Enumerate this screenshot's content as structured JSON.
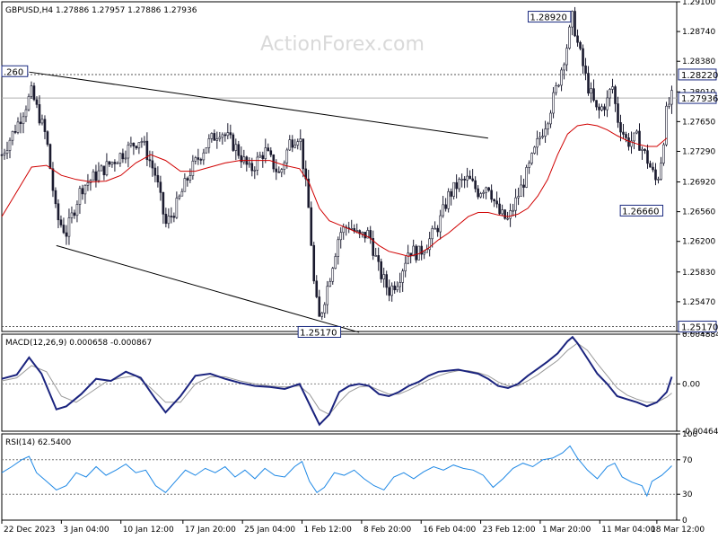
{
  "watermark": "ActionForex.com",
  "chart_data": [
    {
      "type": "line",
      "name": "price",
      "header": "GBPUSD,H4  1.27886 1.27957 1.27886 1.27936",
      "ylim": [
        1.2511,
        1.291
      ],
      "y_ticks": [
        "1.29100",
        "1.28740",
        "1.28380",
        "1.28010",
        "1.27650",
        "1.27290",
        "1.26920",
        "1.26560",
        "1.26200",
        "1.25830",
        "1.25470",
        "1.25110"
      ],
      "y_tick_values": [
        1.291,
        1.2874,
        1.2838,
        1.2801,
        1.2765,
        1.2729,
        1.2692,
        1.2656,
        1.262,
        1.2583,
        1.2547,
        1.2511
      ],
      "x_labels": [
        "22 Dec 2023",
        "3 Jan 04:00",
        "10 Jan 12:00",
        "17 Jan 20:00",
        "25 Jan 04:00",
        "1 Feb 12:00",
        "8 Feb 20:00",
        "16 Feb 04:00",
        "23 Feb 12:00",
        "1 Mar 20:00",
        "11 Mar 04:00",
        "18 Mar 12:00"
      ],
      "x_label_positions": [
        0.0,
        0.12,
        0.24,
        0.365,
        0.485,
        0.605,
        0.725,
        0.845,
        0.965,
        1.085,
        1.205,
        1.32
      ],
      "price_path": [
        [
          0,
          1.2725
        ],
        [
          0.03,
          1.276
        ],
        [
          0.06,
          1.28
        ],
        [
          0.09,
          1.2745
        ],
        [
          0.11,
          1.265
        ],
        [
          0.13,
          1.263
        ],
        [
          0.16,
          1.2685
        ],
        [
          0.19,
          1.27
        ],
        [
          0.22,
          1.2715
        ],
        [
          0.25,
          1.273
        ],
        [
          0.28,
          1.2745
        ],
        [
          0.31,
          1.27
        ],
        [
          0.33,
          1.264
        ],
        [
          0.35,
          1.266
        ],
        [
          0.38,
          1.2705
        ],
        [
          0.41,
          1.2735
        ],
        [
          0.44,
          1.2755
        ],
        [
          0.47,
          1.2735
        ],
        [
          0.5,
          1.2705
        ],
        [
          0.53,
          1.273
        ],
        [
          0.56,
          1.27
        ],
        [
          0.58,
          1.274
        ],
        [
          0.6,
          1.275
        ],
        [
          0.62,
          1.265
        ],
        [
          0.63,
          1.256
        ],
        [
          0.64,
          1.2525
        ],
        [
          0.66,
          1.2575
        ],
        [
          0.68,
          1.263
        ],
        [
          0.7,
          1.264
        ],
        [
          0.72,
          1.2625
        ],
        [
          0.74,
          1.263
        ],
        [
          0.76,
          1.2585
        ],
        [
          0.78,
          1.256
        ],
        [
          0.8,
          1.2575
        ],
        [
          0.82,
          1.261
        ],
        [
          0.84,
          1.2605
        ],
        [
          0.86,
          1.262
        ],
        [
          0.88,
          1.264
        ],
        [
          0.9,
          1.2675
        ],
        [
          0.92,
          1.269
        ],
        [
          0.94,
          1.2695
        ],
        [
          0.96,
          1.268
        ],
        [
          0.98,
          1.269
        ],
        [
          1.0,
          1.2655
        ],
        [
          1.02,
          1.2645
        ],
        [
          1.04,
          1.2675
        ],
        [
          1.06,
          1.2705
        ],
        [
          1.08,
          1.274
        ],
        [
          1.1,
          1.277
        ],
        [
          1.12,
          1.281
        ],
        [
          1.14,
          1.286
        ],
        [
          1.15,
          1.2892
        ],
        [
          1.16,
          1.286
        ],
        [
          1.18,
          1.281
        ],
        [
          1.2,
          1.2775
        ],
        [
          1.22,
          1.279
        ],
        [
          1.23,
          1.281
        ],
        [
          1.24,
          1.277
        ],
        [
          1.26,
          1.274
        ],
        [
          1.28,
          1.2745
        ],
        [
          1.3,
          1.272
        ],
        [
          1.32,
          1.269
        ],
        [
          1.33,
          1.2725
        ],
        [
          1.34,
          1.278
        ],
        [
          1.35,
          1.2794
        ]
      ],
      "ma_path": [
        [
          0,
          1.265
        ],
        [
          0.03,
          1.268
        ],
        [
          0.06,
          1.271
        ],
        [
          0.09,
          1.2712
        ],
        [
          0.12,
          1.27
        ],
        [
          0.15,
          1.2695
        ],
        [
          0.18,
          1.2692
        ],
        [
          0.21,
          1.2693
        ],
        [
          0.24,
          1.27
        ],
        [
          0.27,
          1.2715
        ],
        [
          0.3,
          1.2725
        ],
        [
          0.33,
          1.2718
        ],
        [
          0.36,
          1.2705
        ],
        [
          0.39,
          1.2705
        ],
        [
          0.42,
          1.271
        ],
        [
          0.45,
          1.2715
        ],
        [
          0.48,
          1.2718
        ],
        [
          0.51,
          1.2718
        ],
        [
          0.54,
          1.2718
        ],
        [
          0.57,
          1.2712
        ],
        [
          0.6,
          1.2708
        ],
        [
          0.62,
          1.269
        ],
        [
          0.64,
          1.266
        ],
        [
          0.66,
          1.2645
        ],
        [
          0.68,
          1.264
        ],
        [
          0.7,
          1.2635
        ],
        [
          0.72,
          1.263
        ],
        [
          0.74,
          1.2625
        ],
        [
          0.76,
          1.2615
        ],
        [
          0.78,
          1.2608
        ],
        [
          0.8,
          1.2605
        ],
        [
          0.82,
          1.2602
        ],
        [
          0.84,
          1.2605
        ],
        [
          0.86,
          1.2612
        ],
        [
          0.88,
          1.2622
        ],
        [
          0.9,
          1.263
        ],
        [
          0.92,
          1.264
        ],
        [
          0.94,
          1.265
        ],
        [
          0.96,
          1.2655
        ],
        [
          0.98,
          1.2655
        ],
        [
          1.0,
          1.2652
        ],
        [
          1.02,
          1.265
        ],
        [
          1.04,
          1.2653
        ],
        [
          1.06,
          1.266
        ],
        [
          1.08,
          1.2675
        ],
        [
          1.1,
          1.2695
        ],
        [
          1.12,
          1.2725
        ],
        [
          1.14,
          1.275
        ],
        [
          1.16,
          1.276
        ],
        [
          1.18,
          1.2762
        ],
        [
          1.2,
          1.276
        ],
        [
          1.22,
          1.2755
        ],
        [
          1.24,
          1.2748
        ],
        [
          1.26,
          1.2742
        ],
        [
          1.28,
          1.2738
        ],
        [
          1.3,
          1.2735
        ],
        [
          1.32,
          1.2735
        ],
        [
          1.34,
          1.2745
        ]
      ],
      "trendlines": [
        {
          "name": "upper-channel",
          "from": [
            0.055,
            1.2825
          ],
          "to": [
            0.98,
            1.2745
          ]
        },
        {
          "name": "lower-channel",
          "from": [
            0.11,
            1.2615
          ],
          "to": [
            0.72,
            1.251
          ]
        }
      ],
      "levels": [
        {
          "value": 1.2822,
          "label": "1.28220",
          "style": "dotted"
        },
        {
          "value": 1.2517,
          "label": "1.25170",
          "style": "dotted"
        },
        {
          "value": 1.27936,
          "label": "1.27936",
          "style": "solid"
        }
      ],
      "annotations": [
        {
          "label": "1.28920",
          "x": 1.15,
          "y": 1.2892
        },
        {
          "label": "1.26660",
          "x": 1.3,
          "y": 1.2666
        },
        {
          "label": "1.25170",
          "x": 0.64,
          "y": 1.2517
        },
        {
          "label": ".260",
          "x": 0.0,
          "y": 1.2826
        }
      ]
    },
    {
      "type": "line",
      "name": "macd",
      "header": "MACD(12,26,9) 0.000658 -0.000867",
      "ylim": [
        -0.004645,
        0.004884
      ],
      "y_ticks": [
        "0.004884",
        "0.00",
        "-0.004645"
      ],
      "y_tick_values": [
        0.004884,
        0.0,
        -0.004645
      ],
      "macd_path": [
        [
          0,
          0.0005
        ],
        [
          0.03,
          0.0009
        ],
        [
          0.055,
          0.0026
        ],
        [
          0.08,
          0.001
        ],
        [
          0.11,
          -0.0025
        ],
        [
          0.13,
          -0.0022
        ],
        [
          0.16,
          -0.001
        ],
        [
          0.19,
          0.0005
        ],
        [
          0.22,
          0.0003
        ],
        [
          0.25,
          0.0012
        ],
        [
          0.28,
          0.0006
        ],
        [
          0.31,
          -0.0015
        ],
        [
          0.33,
          -0.0028
        ],
        [
          0.36,
          -0.0012
        ],
        [
          0.39,
          0.0008
        ],
        [
          0.42,
          0.001
        ],
        [
          0.45,
          0.0005
        ],
        [
          0.48,
          0.0001
        ],
        [
          0.51,
          -0.0002
        ],
        [
          0.54,
          -0.0003
        ],
        [
          0.57,
          -0.0005
        ],
        [
          0.6,
          0.0
        ],
        [
          0.62,
          -0.002
        ],
        [
          0.64,
          -0.004
        ],
        [
          0.66,
          -0.003
        ],
        [
          0.68,
          -0.0008
        ],
        [
          0.7,
          -0.0002
        ],
        [
          0.72,
          0.0
        ],
        [
          0.74,
          -0.0002
        ],
        [
          0.76,
          -0.001
        ],
        [
          0.78,
          -0.0012
        ],
        [
          0.8,
          -0.0008
        ],
        [
          0.82,
          -0.0002
        ],
        [
          0.84,
          0.0002
        ],
        [
          0.86,
          0.0008
        ],
        [
          0.88,
          0.0012
        ],
        [
          0.9,
          0.0013
        ],
        [
          0.92,
          0.0014
        ],
        [
          0.94,
          0.0012
        ],
        [
          0.96,
          0.001
        ],
        [
          0.98,
          0.0005
        ],
        [
          1.0,
          -0.0002
        ],
        [
          1.02,
          -0.0004
        ],
        [
          1.04,
          0.0
        ],
        [
          1.06,
          0.0008
        ],
        [
          1.08,
          0.0015
        ],
        [
          1.1,
          0.0022
        ],
        [
          1.12,
          0.003
        ],
        [
          1.14,
          0.0042
        ],
        [
          1.15,
          0.0046
        ],
        [
          1.16,
          0.004
        ],
        [
          1.18,
          0.0025
        ],
        [
          1.2,
          0.001
        ],
        [
          1.22,
          0.0
        ],
        [
          1.24,
          -0.0012
        ],
        [
          1.26,
          -0.0015
        ],
        [
          1.28,
          -0.0018
        ],
        [
          1.3,
          -0.0022
        ],
        [
          1.32,
          -0.0018
        ],
        [
          1.34,
          -0.0008
        ],
        [
          1.35,
          0.0007
        ]
      ],
      "signal_path": [
        [
          0,
          0.0003
        ],
        [
          0.03,
          0.0006
        ],
        [
          0.06,
          0.0018
        ],
        [
          0.09,
          0.0012
        ],
        [
          0.12,
          -0.0012
        ],
        [
          0.15,
          -0.0018
        ],
        [
          0.18,
          -0.0008
        ],
        [
          0.21,
          0.0002
        ],
        [
          0.24,
          0.0006
        ],
        [
          0.27,
          0.0008
        ],
        [
          0.3,
          -0.0004
        ],
        [
          0.33,
          -0.0018
        ],
        [
          0.36,
          -0.0018
        ],
        [
          0.39,
          0.0
        ],
        [
          0.42,
          0.0007
        ],
        [
          0.45,
          0.0007
        ],
        [
          0.48,
          0.0003
        ],
        [
          0.51,
          0.0
        ],
        [
          0.54,
          -0.0002
        ],
        [
          0.57,
          -0.0003
        ],
        [
          0.6,
          -0.0002
        ],
        [
          0.62,
          -0.001
        ],
        [
          0.64,
          -0.0025
        ],
        [
          0.66,
          -0.003
        ],
        [
          0.68,
          -0.0018
        ],
        [
          0.7,
          -0.0008
        ],
        [
          0.72,
          -0.0003
        ],
        [
          0.74,
          -0.0002
        ],
        [
          0.76,
          -0.0006
        ],
        [
          0.78,
          -0.001
        ],
        [
          0.8,
          -0.001
        ],
        [
          0.82,
          -0.0006
        ],
        [
          0.84,
          -0.0001
        ],
        [
          0.86,
          0.0004
        ],
        [
          0.88,
          0.0008
        ],
        [
          0.9,
          0.0011
        ],
        [
          0.92,
          0.0013
        ],
        [
          0.94,
          0.0013
        ],
        [
          0.96,
          0.0011
        ],
        [
          0.98,
          0.0008
        ],
        [
          1.0,
          0.0002
        ],
        [
          1.02,
          -0.0002
        ],
        [
          1.04,
          -0.0002
        ],
        [
          1.06,
          0.0003
        ],
        [
          1.08,
          0.0009
        ],
        [
          1.1,
          0.0016
        ],
        [
          1.12,
          0.0023
        ],
        [
          1.14,
          0.0033
        ],
        [
          1.16,
          0.004
        ],
        [
          1.18,
          0.0033
        ],
        [
          1.2,
          0.002
        ],
        [
          1.22,
          0.0008
        ],
        [
          1.24,
          -0.0004
        ],
        [
          1.26,
          -0.0011
        ],
        [
          1.28,
          -0.0015
        ],
        [
          1.3,
          -0.0018
        ],
        [
          1.32,
          -0.0018
        ],
        [
          1.34,
          -0.0013
        ],
        [
          1.35,
          -0.0009
        ]
      ]
    },
    {
      "type": "line",
      "name": "rsi",
      "header": "RSI(14) 62.5400",
      "ylim": [
        0,
        100
      ],
      "y_ticks": [
        "100",
        "70",
        "30",
        "0"
      ],
      "y_tick_values": [
        100,
        70,
        30,
        0
      ],
      "levels": [
        70,
        30
      ],
      "rsi_path": [
        [
          0,
          55
        ],
        [
          0.02,
          62
        ],
        [
          0.04,
          70
        ],
        [
          0.055,
          74
        ],
        [
          0.07,
          55
        ],
        [
          0.09,
          45
        ],
        [
          0.11,
          35
        ],
        [
          0.13,
          40
        ],
        [
          0.15,
          55
        ],
        [
          0.17,
          50
        ],
        [
          0.19,
          62
        ],
        [
          0.21,
          52
        ],
        [
          0.23,
          58
        ],
        [
          0.25,
          65
        ],
        [
          0.27,
          55
        ],
        [
          0.29,
          58
        ],
        [
          0.31,
          40
        ],
        [
          0.33,
          32
        ],
        [
          0.35,
          45
        ],
        [
          0.37,
          58
        ],
        [
          0.39,
          52
        ],
        [
          0.41,
          60
        ],
        [
          0.43,
          55
        ],
        [
          0.45,
          62
        ],
        [
          0.47,
          50
        ],
        [
          0.49,
          58
        ],
        [
          0.51,
          48
        ],
        [
          0.53,
          60
        ],
        [
          0.55,
          52
        ],
        [
          0.57,
          50
        ],
        [
          0.59,
          62
        ],
        [
          0.605,
          68
        ],
        [
          0.62,
          45
        ],
        [
          0.635,
          32
        ],
        [
          0.65,
          38
        ],
        [
          0.67,
          55
        ],
        [
          0.69,
          52
        ],
        [
          0.71,
          58
        ],
        [
          0.73,
          48
        ],
        [
          0.75,
          40
        ],
        [
          0.77,
          35
        ],
        [
          0.79,
          50
        ],
        [
          0.81,
          55
        ],
        [
          0.83,
          48
        ],
        [
          0.85,
          56
        ],
        [
          0.87,
          62
        ],
        [
          0.89,
          58
        ],
        [
          0.91,
          64
        ],
        [
          0.93,
          60
        ],
        [
          0.95,
          58
        ],
        [
          0.97,
          52
        ],
        [
          0.99,
          38
        ],
        [
          1.01,
          48
        ],
        [
          1.03,
          60
        ],
        [
          1.05,
          66
        ],
        [
          1.07,
          62
        ],
        [
          1.09,
          70
        ],
        [
          1.11,
          72
        ],
        [
          1.13,
          78
        ],
        [
          1.145,
          86
        ],
        [
          1.16,
          72
        ],
        [
          1.18,
          58
        ],
        [
          1.2,
          48
        ],
        [
          1.22,
          62
        ],
        [
          1.235,
          66
        ],
        [
          1.25,
          50
        ],
        [
          1.27,
          44
        ],
        [
          1.29,
          40
        ],
        [
          1.3,
          28
        ],
        [
          1.31,
          45
        ],
        [
          1.33,
          52
        ],
        [
          1.345,
          60
        ],
        [
          1.35,
          63
        ]
      ]
    }
  ]
}
